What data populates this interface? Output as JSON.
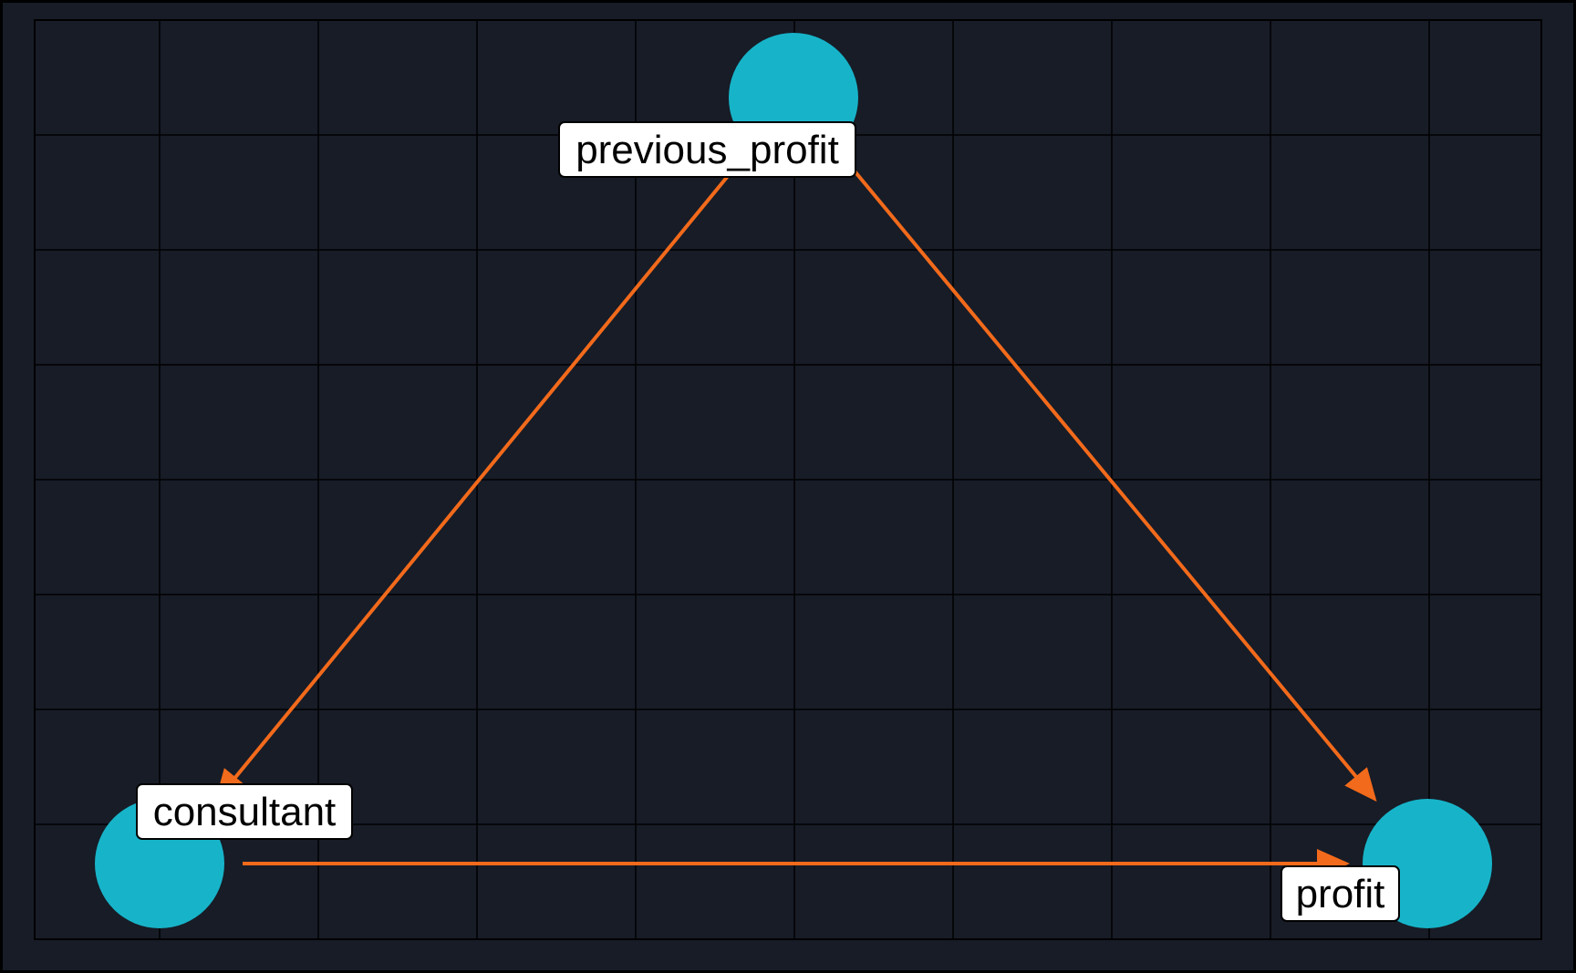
{
  "chart_data": {
    "type": "dag",
    "nodes": [
      {
        "id": "previous_profit",
        "label": "previous_profit",
        "x": 0.0,
        "y": 1.0
      },
      {
        "id": "consultant",
        "label": "consultant",
        "x": -1.0,
        "y": 0.0
      },
      {
        "id": "profit",
        "label": "profit",
        "x": 1.0,
        "y": 0.0
      }
    ],
    "edges": [
      {
        "from": "previous_profit",
        "to": "consultant"
      },
      {
        "from": "previous_profit",
        "to": "profit"
      },
      {
        "from": "consultant",
        "to": "profit"
      }
    ],
    "xlim": [
      -1.0,
      1.0
    ],
    "ylim": [
      0.0,
      1.0
    ],
    "grid": true,
    "colors": {
      "background": "#171c27",
      "outer": "#000000",
      "node_fill": "#17b4c9",
      "edge": "#f26a1b",
      "label_fill": "#ffffff",
      "label_stroke": "#000000",
      "grid": "#000000"
    }
  }
}
